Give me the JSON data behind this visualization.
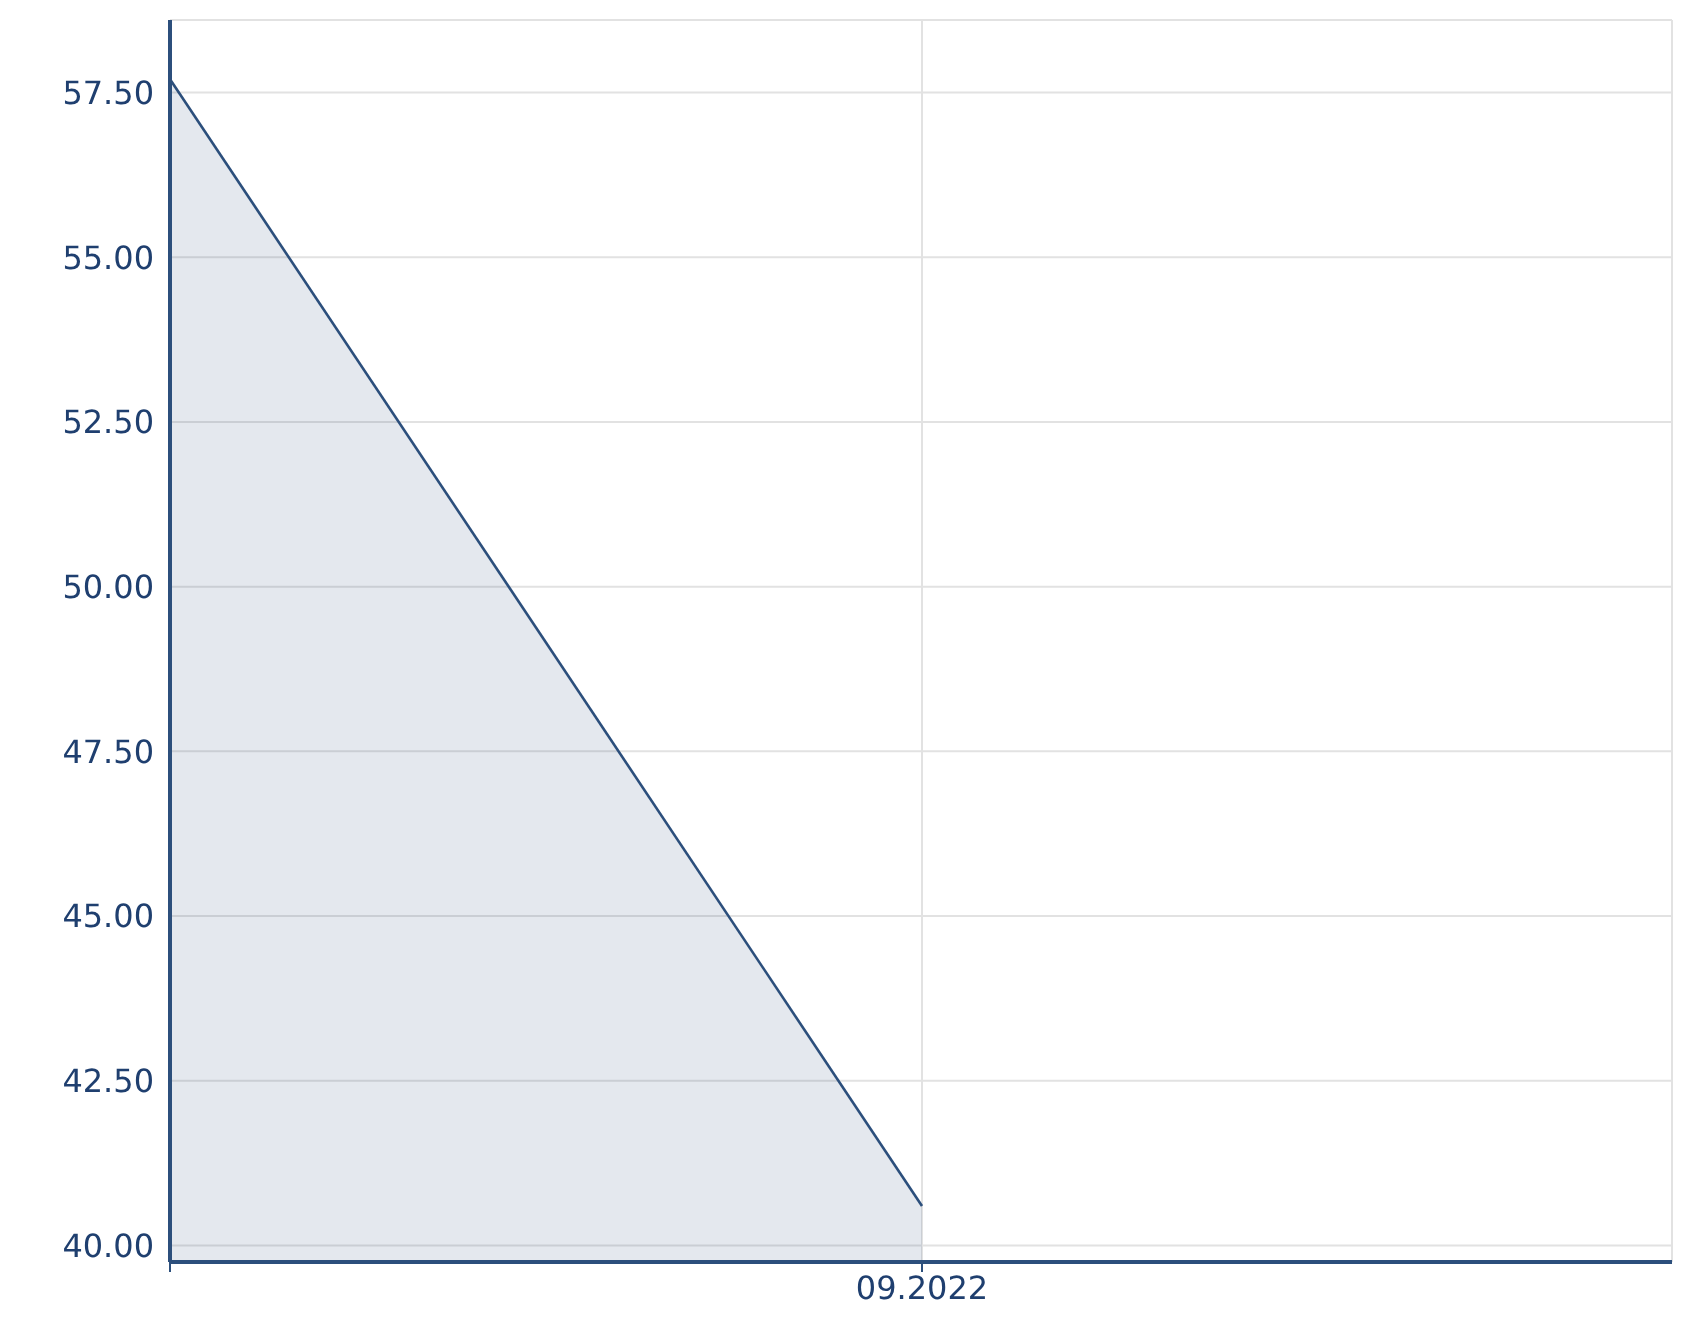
{
  "chart_data": {
    "type": "area",
    "categories": [
      null,
      "09.2022"
    ],
    "series": [
      {
        "color": "#2c4f7c",
        "values": [
          57.7,
          40.6
        ]
      }
    ],
    "ylim": [
      39.75,
      58.6
    ],
    "yticks": [
      {
        "value": 40,
        "label": "40.00"
      },
      {
        "value": 42.5,
        "label": "42.50"
      },
      {
        "value": 45,
        "label": "45.00"
      },
      {
        "value": 47.5,
        "label": "47.50"
      },
      {
        "value": 50,
        "label": "50.00"
      },
      {
        "value": 52.5,
        "label": "52.50"
      },
      {
        "value": 55,
        "label": "55.00"
      },
      {
        "value": 57.5,
        "label": "57.50"
      }
    ],
    "grid": true
  }
}
